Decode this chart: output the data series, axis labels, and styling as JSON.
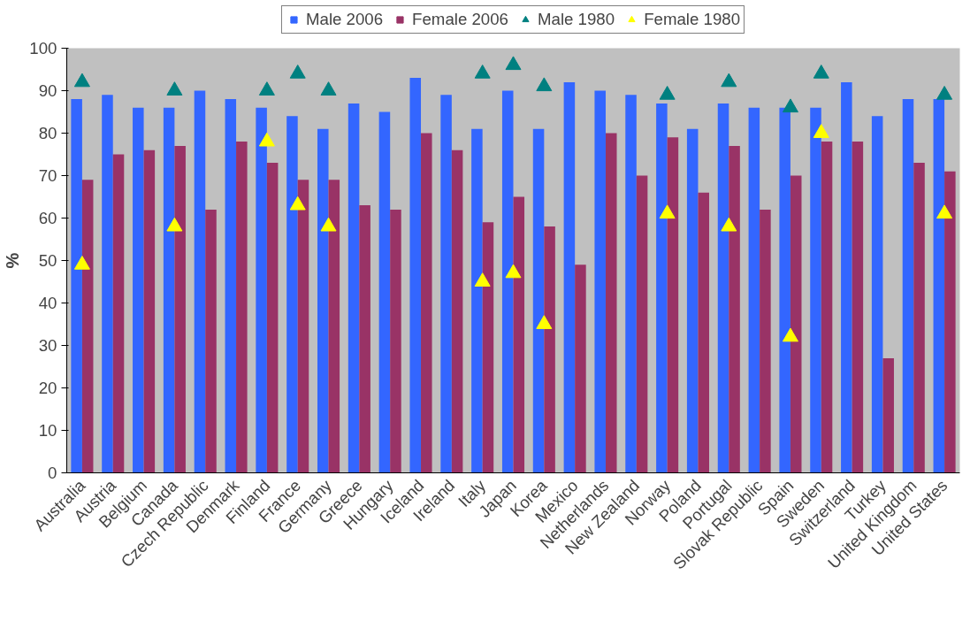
{
  "chart_data": {
    "type": "bar",
    "ylabel": "%",
    "categories": [
      "Australia",
      "Austria",
      "Belgium",
      "Canada",
      "Czech Republic",
      "Denmark",
      "Finland",
      "France",
      "Germany",
      "Greece",
      "Hungary",
      "Iceland",
      "Ireland",
      "Italy",
      "Japan",
      "Korea",
      "Mexico",
      "Netherlands",
      "New Zealand",
      "Norway",
      "Poland",
      "Portugal",
      "Slovak Republic",
      "Spain",
      "Sweden",
      "Switzerland",
      "Turkey",
      "United Kingdom",
      "United States"
    ],
    "series": [
      {
        "name": "Male 2006",
        "color": "#3366ff",
        "values": [
          88,
          89,
          86,
          86,
          90,
          88,
          86,
          84,
          81,
          87,
          85,
          93,
          89,
          81,
          90,
          81,
          92,
          90,
          89,
          87,
          81,
          87,
          86,
          86,
          86,
          92,
          84,
          88,
          88
        ]
      },
      {
        "name": "Female 2006",
        "color": "#993366",
        "values": [
          69,
          75,
          76,
          77,
          62,
          78,
          73,
          69,
          69,
          63,
          62,
          80,
          76,
          59,
          65,
          58,
          49,
          80,
          70,
          79,
          66,
          77,
          62,
          70,
          78,
          78,
          27,
          73,
          71
        ]
      },
      {
        "name": "Male 1980",
        "color": "#008080",
        "type": "scatter",
        "marker": "triangle",
        "values": [
          92,
          null,
          null,
          90,
          null,
          null,
          90,
          94,
          90,
          null,
          null,
          null,
          null,
          94,
          96,
          91,
          null,
          null,
          null,
          89,
          null,
          92,
          null,
          86,
          94,
          null,
          null,
          null,
          89
        ]
      },
      {
        "name": "Female 1980",
        "color": "#ffff00",
        "type": "scatter",
        "marker": "triangle",
        "values": [
          49,
          null,
          null,
          58,
          null,
          null,
          78,
          63,
          58,
          null,
          null,
          null,
          null,
          45,
          47,
          35,
          null,
          null,
          null,
          61,
          null,
          58,
          null,
          32,
          80,
          null,
          null,
          null,
          61
        ]
      }
    ],
    "ylim": [
      0,
      100
    ],
    "yticks": [
      0,
      10,
      20,
      30,
      40,
      50,
      60,
      70,
      80,
      90,
      100
    ],
    "grid": false,
    "legend": "top"
  }
}
